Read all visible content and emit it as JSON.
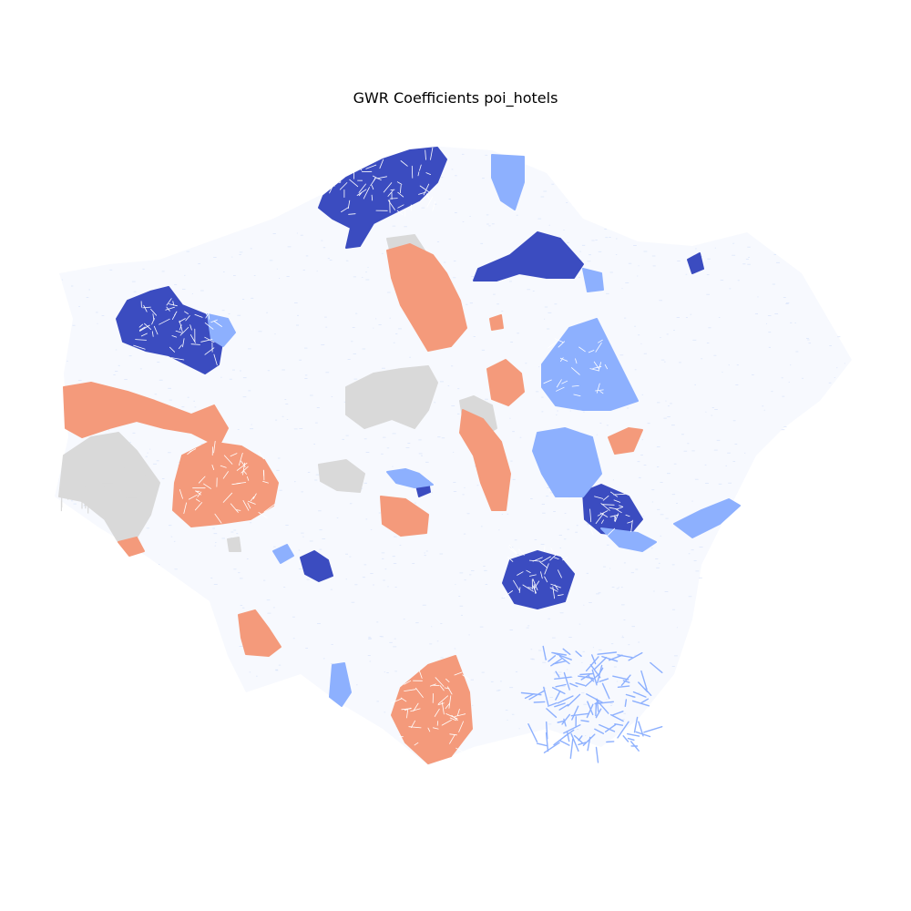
{
  "figure": {
    "title": "GWR Coefficients poi_hotels"
  },
  "map": {
    "colors": {
      "strong_negative": "#3b4cc0",
      "negative": "#8db0fe",
      "not_significant": "#d9d9d9",
      "positive": "#f49a7b",
      "background_network": "#dde6fb"
    },
    "classes": [
      "strong_negative",
      "negative",
      "not_significant",
      "positive"
    ],
    "legend": "none",
    "axes": "off"
  }
}
